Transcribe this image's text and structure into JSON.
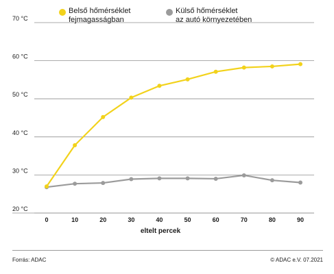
{
  "legend": {
    "inner": {
      "line1": "Belső hőmérséklet",
      "line2": "fejmagasságban",
      "color": "#f2d21b"
    },
    "outer": {
      "line1": "Külső hőmérséklet",
      "line2": "az autó környezetében",
      "color": "#9b9b9b"
    }
  },
  "footer": {
    "source": "Forrás: ADAC",
    "copyright": "© ADAC e.V. 07.2021"
  },
  "chart_data": {
    "type": "line",
    "x": [
      0,
      10,
      20,
      30,
      40,
      50,
      60,
      70,
      80,
      90
    ],
    "xlabel": "eltelt percek",
    "ylabel": "",
    "ylim": [
      20,
      70
    ],
    "yticks": [
      20,
      30,
      40,
      50,
      60,
      70
    ],
    "ytick_labels": [
      "20 °C",
      "30 °C",
      "40 °C",
      "50 °C",
      "60 °C",
      "70 °C"
    ],
    "xtick_labels": [
      "0",
      "10",
      "20",
      "30",
      "40",
      "50",
      "60",
      "70",
      "80",
      "90"
    ],
    "grid": true,
    "legend_position": "top",
    "series": [
      {
        "name": "Belső hőmérséklet fejmagasságban",
        "color": "#f2d21b",
        "values": [
          27,
          37.8,
          45.2,
          50.3,
          53.4,
          55.1,
          57.1,
          58.2,
          58.5,
          59.1
        ]
      },
      {
        "name": "Külső hőmérséklet az autó környezetében",
        "color": "#9b9b9b",
        "values": [
          26.8,
          27.7,
          27.9,
          28.9,
          29.1,
          29.1,
          29.0,
          29.9,
          28.6,
          28.0
        ]
      }
    ]
  }
}
